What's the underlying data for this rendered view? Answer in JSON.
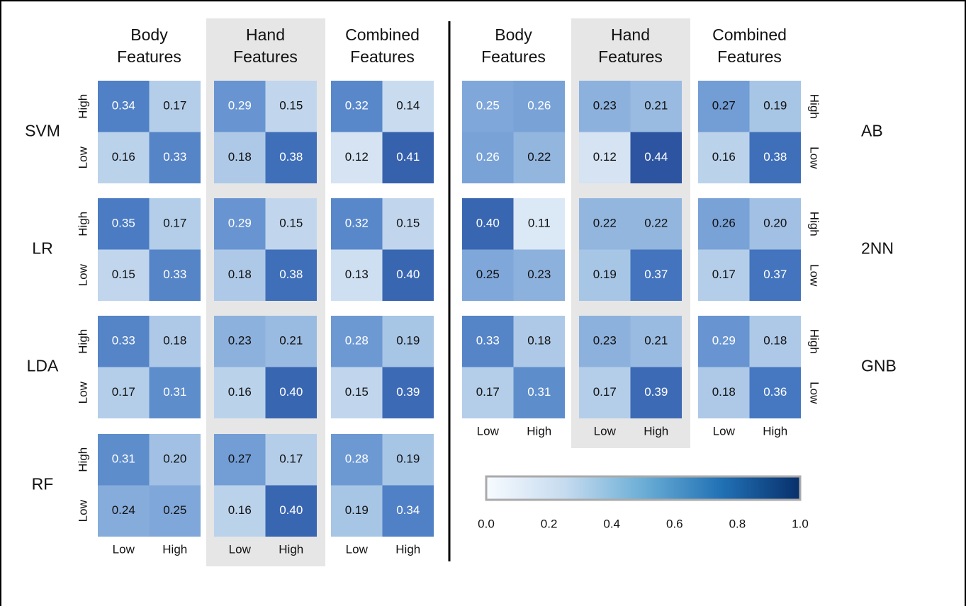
{
  "chart_data": {
    "type": "heatmap",
    "features": [
      "Body Features",
      "Hand Features",
      "Combined Features"
    ],
    "shaded_feature": 1,
    "x_labels": [
      "Low",
      "High"
    ],
    "y_labels": [
      "High",
      "Low"
    ],
    "cell_vlim": [
      0.1,
      0.45
    ],
    "cell_colors": [
      "#e2ecf7",
      "#a9c6e6",
      "#6f9bd4",
      "#4577c0",
      "#2a4f9c"
    ],
    "groups": [
      {
        "label_side": "left",
        "models": [
          "SVM",
          "LR",
          "LDA",
          "RF"
        ],
        "values": [
          [
            [
              [
                0.34,
                0.17
              ],
              [
                0.16,
                0.33
              ]
            ],
            [
              [
                0.29,
                0.15
              ],
              [
                0.18,
                0.38
              ]
            ],
            [
              [
                0.32,
                0.14
              ],
              [
                0.12,
                0.41
              ]
            ]
          ],
          [
            [
              [
                0.35,
                0.17
              ],
              [
                0.15,
                0.33
              ]
            ],
            [
              [
                0.29,
                0.15
              ],
              [
                0.18,
                0.38
              ]
            ],
            [
              [
                0.32,
                0.15
              ],
              [
                0.13,
                0.4
              ]
            ]
          ],
          [
            [
              [
                0.33,
                0.18
              ],
              [
                0.17,
                0.31
              ]
            ],
            [
              [
                0.23,
                0.21
              ],
              [
                0.16,
                0.4
              ]
            ],
            [
              [
                0.28,
                0.19
              ],
              [
                0.15,
                0.39
              ]
            ]
          ],
          [
            [
              [
                0.31,
                0.2
              ],
              [
                0.24,
                0.25
              ]
            ],
            [
              [
                0.27,
                0.17
              ],
              [
                0.16,
                0.4
              ]
            ],
            [
              [
                0.28,
                0.19
              ],
              [
                0.19,
                0.34
              ]
            ]
          ]
        ],
        "value_labels": [
          [
            [
              [
                "0.34",
                "0.17"
              ],
              [
                "0.16",
                "0.33"
              ]
            ],
            [
              [
                "0.29",
                "0.15"
              ],
              [
                "0.18",
                "0.38"
              ]
            ],
            [
              [
                "0.32",
                "0.14"
              ],
              [
                "0.12",
                "0.41"
              ]
            ]
          ],
          [
            [
              [
                "0.35",
                "0.17"
              ],
              [
                "0.15",
                "0.33"
              ]
            ],
            [
              [
                "0.29",
                "0.15"
              ],
              [
                "0.18",
                "0.38"
              ]
            ],
            [
              [
                "0.32",
                "0.15"
              ],
              [
                "0.13",
                "0.40"
              ]
            ]
          ],
          [
            [
              [
                "0.33",
                "0.18"
              ],
              [
                "0.17",
                "0.31"
              ]
            ],
            [
              [
                "0.23",
                "0.21"
              ],
              [
                "0.16",
                "0.40"
              ]
            ],
            [
              [
                "0.28",
                "0.19"
              ],
              [
                "0.15",
                "0.39"
              ]
            ]
          ],
          [
            [
              [
                "0.31",
                "0.20"
              ],
              [
                "0.24",
                "0.25"
              ]
            ],
            [
              [
                "0.27",
                "0.17"
              ],
              [
                "0.16",
                "0.40"
              ]
            ],
            [
              [
                "0.28",
                "0.19"
              ],
              [
                "0.19",
                "0.34"
              ]
            ]
          ]
        ]
      },
      {
        "label_side": "right",
        "models": [
          "AB",
          "2NN",
          "GNB"
        ],
        "values": [
          [
            [
              [
                0.25,
                0.26
              ],
              [
                0.26,
                0.22
              ]
            ],
            [
              [
                0.23,
                0.21
              ],
              [
                0.12,
                0.44
              ]
            ],
            [
              [
                0.27,
                0.19
              ],
              [
                0.16,
                0.38
              ]
            ]
          ],
          [
            [
              [
                0.4,
                0.11
              ],
              [
                0.25,
                0.23
              ]
            ],
            [
              [
                0.22,
                0.22
              ],
              [
                0.19,
                0.37
              ]
            ],
            [
              [
                0.26,
                0.2
              ],
              [
                0.17,
                0.37
              ]
            ]
          ],
          [
            [
              [
                0.33,
                0.18
              ],
              [
                0.17,
                0.31
              ]
            ],
            [
              [
                0.23,
                0.21
              ],
              [
                0.17,
                0.39
              ]
            ],
            [
              [
                0.29,
                0.18
              ],
              [
                0.18,
                0.36
              ]
            ]
          ]
        ],
        "value_labels": [
          [
            [
              [
                "0.25",
                "0.26"
              ],
              [
                "0.26",
                "0.22"
              ]
            ],
            [
              [
                "0.23",
                "0.21"
              ],
              [
                "0.12",
                "0.44"
              ]
            ],
            [
              [
                "0.27",
                "0.19"
              ],
              [
                "0.16",
                "0.38"
              ]
            ]
          ],
          [
            [
              [
                "0.40",
                "0.11"
              ],
              [
                "0.25",
                "0.23"
              ]
            ],
            [
              [
                "0.22",
                "0.22"
              ],
              [
                "0.19",
                "0.37"
              ]
            ],
            [
              [
                "0.26",
                "0.20"
              ],
              [
                "0.17",
                "0.37"
              ]
            ]
          ],
          [
            [
              [
                "0.33",
                "0.18"
              ],
              [
                "0.17",
                "0.31"
              ]
            ],
            [
              [
                "0.23",
                "0.21"
              ],
              [
                "0.17",
                "0.39"
              ]
            ],
            [
              [
                "0.29",
                "0.18"
              ],
              [
                "0.18",
                "0.36"
              ]
            ]
          ]
        ]
      }
    ],
    "colorbar": {
      "lim": [
        0,
        1
      ],
      "colors": [
        "#f7fbff",
        "#c6dbef",
        "#6baed6",
        "#2171b5",
        "#08306b"
      ],
      "ticks": [
        {
          "value": 0,
          "label": "0.0"
        },
        {
          "value": 0.2,
          "label": "0.2"
        },
        {
          "value": 0.4,
          "label": "0.4"
        },
        {
          "value": 0.6,
          "label": "0.6"
        },
        {
          "value": 0.8,
          "label": "0.8"
        },
        {
          "value": 1,
          "label": "1.0"
        }
      ]
    }
  }
}
